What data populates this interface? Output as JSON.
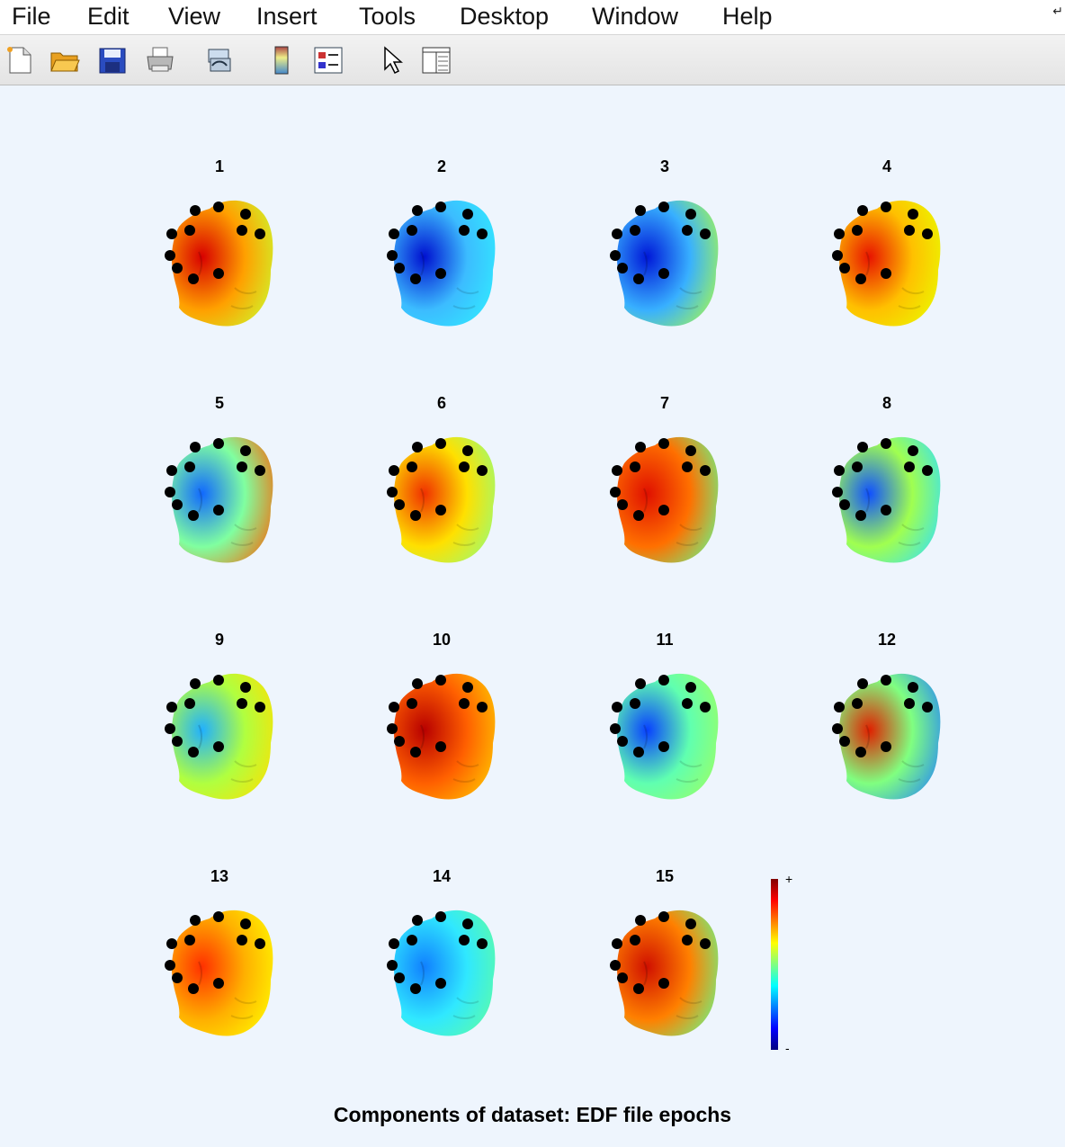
{
  "menu": [
    "File",
    "Edit",
    "View",
    "Insert",
    "Tools",
    "Desktop",
    "Window",
    "Help"
  ],
  "toolbar": {
    "buttons": [
      "new-file",
      "open-file",
      "save",
      "print",
      "link",
      "colorbar",
      "legend",
      "select-pointer",
      "property-editor"
    ]
  },
  "components": [
    {
      "label": "1",
      "c1": "#d80000",
      "c2": "#ffa000",
      "c3": "#c9ff30"
    },
    {
      "label": "2",
      "c1": "#0010d0",
      "c2": "#3cbcff",
      "c3": "#30f0ff"
    },
    {
      "label": "3",
      "c1": "#0018d8",
      "c2": "#38b0ff",
      "c3": "#b0ff40"
    },
    {
      "label": "4",
      "c1": "#e81400",
      "c2": "#ffc000",
      "c3": "#e8ff00"
    },
    {
      "label": "5",
      "c1": "#1068ff",
      "c2": "#80ffa0",
      "c3": "#ff6000"
    },
    {
      "label": "6",
      "c1": "#f03000",
      "c2": "#ffe000",
      "c3": "#90ff80"
    },
    {
      "label": "7",
      "c1": "#e01000",
      "c2": "#ff7000",
      "c3": "#60ff90"
    },
    {
      "label": "8",
      "c1": "#1050ff",
      "c2": "#a0ff50",
      "c3": "#30e0ff"
    },
    {
      "label": "9",
      "c1": "#20b0ff",
      "c2": "#b0ff40",
      "c3": "#ffe000"
    },
    {
      "label": "10",
      "c1": "#b80000",
      "c2": "#ff6000",
      "c3": "#ffd000"
    },
    {
      "label": "11",
      "c1": "#0840ff",
      "c2": "#60ffb0",
      "c3": "#a0ff60"
    },
    {
      "label": "12",
      "c1": "#e02000",
      "c2": "#80ff80",
      "c3": "#2080ff"
    },
    {
      "label": "13",
      "c1": "#ff3000",
      "c2": "#ffb000",
      "c3": "#ffff00"
    },
    {
      "label": "14",
      "c1": "#1080ff",
      "c2": "#30e8ff",
      "c3": "#60ffa0"
    },
    {
      "label": "15",
      "c1": "#d01000",
      "c2": "#ff8000",
      "c3": "#60ff90"
    }
  ],
  "colorbar": {
    "max_label": "+",
    "min_label": "-"
  },
  "figure_title": "Components of dataset: EDF file epochs"
}
